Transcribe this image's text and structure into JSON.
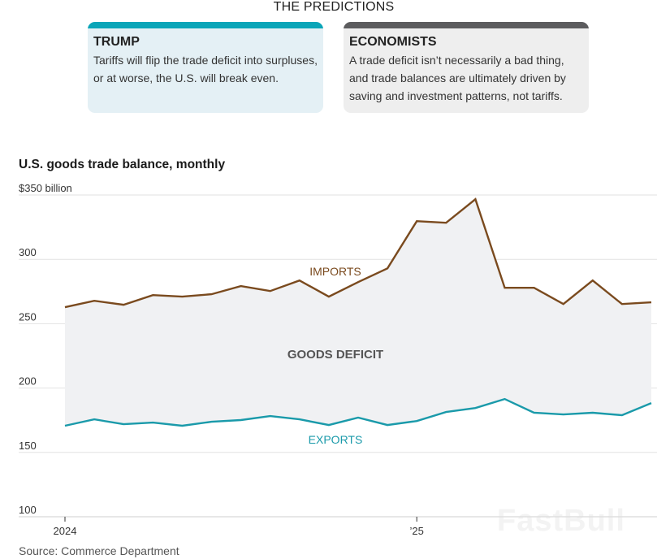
{
  "predictions": {
    "title": "THE PREDICTIONS",
    "cards": [
      {
        "heading": "TRUMP",
        "text": "Tariffs will flip the trade deficit into surpluses, or at worse, the U.S. will break even.",
        "accent": "#0aa5b8",
        "background": "#e4f0f5"
      },
      {
        "heading": "ECONOMISTS",
        "text": "A trade deficit isn’t necessarily a bad thing, and trade balances are ultimately driven by saving and investment patterns, not tariffs.",
        "accent": "#5c5c5e",
        "background": "#eeeeee"
      }
    ]
  },
  "chart_data": {
    "type": "line",
    "title": "U.S. goods trade balance, monthly",
    "ylabel": "$ billion",
    "xlabel": "",
    "ylim": [
      100,
      350
    ],
    "yticks": [
      {
        "value": 350,
        "label": "$350 billion"
      },
      {
        "value": 300,
        "label": "300"
      },
      {
        "value": 250,
        "label": "250"
      },
      {
        "value": 200,
        "label": "200"
      },
      {
        "value": 150,
        "label": "150"
      },
      {
        "value": 100,
        "label": "100"
      }
    ],
    "grid": true,
    "x": [
      "2024-01",
      "2024-02",
      "2024-03",
      "2024-04",
      "2024-05",
      "2024-06",
      "2024-07",
      "2024-08",
      "2024-09",
      "2024-10",
      "2024-11",
      "2024-12",
      "2025-01",
      "2025-02",
      "2025-03",
      "2025-04",
      "2025-05",
      "2025-06",
      "2025-07",
      "2025-08",
      "2025-09"
    ],
    "xticks": [
      {
        "index": 0,
        "label": "2024"
      },
      {
        "index": 12,
        "label": "’25"
      }
    ],
    "series": [
      {
        "name": "Imports",
        "label": "IMPORTS",
        "color": "#7a4a1e",
        "values": [
          262.8,
          267.8,
          264.7,
          272.2,
          271.0,
          272.9,
          279.2,
          275.4,
          283.6,
          271.0,
          282.3,
          293.0,
          329.7,
          328.4,
          346.7,
          277.9,
          277.9,
          265.3,
          283.6,
          265.3,
          266.6
        ]
      },
      {
        "name": "Exports",
        "label": "EXPORTS",
        "color": "#1a9aaa",
        "values": [
          170.7,
          175.7,
          171.9,
          173.2,
          170.7,
          173.8,
          175.1,
          178.2,
          175.7,
          171.3,
          177.0,
          171.3,
          174.4,
          181.4,
          184.5,
          191.5,
          180.8,
          179.5,
          180.8,
          178.9,
          188.3
        ]
      }
    ],
    "area": {
      "label": "GOODS DEFICIT",
      "between": [
        "Imports",
        "Exports"
      ],
      "fill": "#f0f1f3"
    },
    "annotations": [
      "IMPORTS",
      "GOODS DEFICIT",
      "EXPORTS"
    ]
  },
  "source": "Source: Commerce Department",
  "watermark": "FastBull"
}
